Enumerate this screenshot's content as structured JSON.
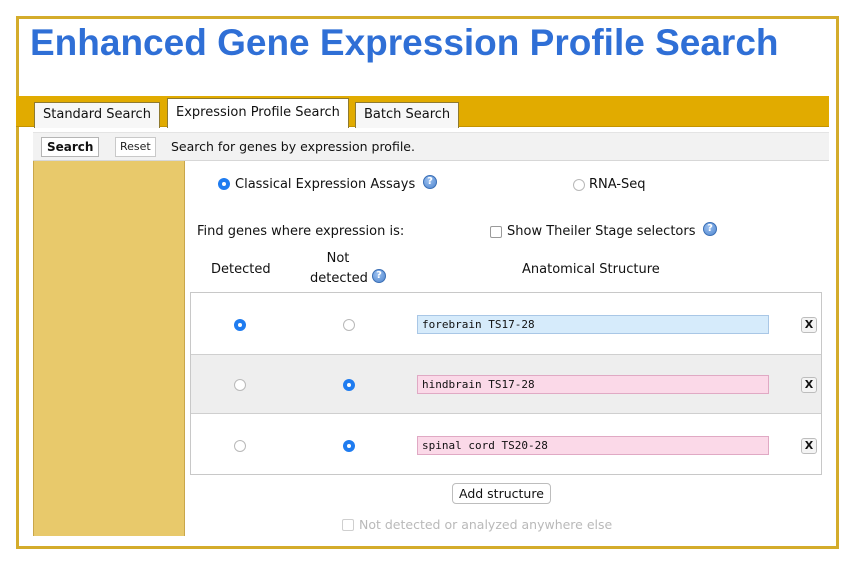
{
  "page": {
    "title": "Enhanced Gene Expression Profile Search"
  },
  "tabs": [
    {
      "label": "Standard Search"
    },
    {
      "label": "Expression Profile Search"
    },
    {
      "label": "Batch Search"
    }
  ],
  "toolbar": {
    "search_label": "Search",
    "reset_label": "Reset",
    "description": "Search for genes by expression profile."
  },
  "assay_type": {
    "classical_label": "Classical Expression Assays",
    "rnaseq_label": "RNA-Seq",
    "selected": "classical"
  },
  "filters": {
    "find_label": "Find genes where expression is:",
    "theiler_label": "Show Theiler Stage selectors"
  },
  "table": {
    "col_detected": "Detected",
    "col_not_detected_line1": "Not",
    "col_not_detected_line2": "detected",
    "col_structure": "Anatomical Structure",
    "remove_label": "X",
    "rows": [
      {
        "structure": "forebrain TS17-28",
        "selection": "detected"
      },
      {
        "structure": "hindbrain TS17-28",
        "selection": "not_detected"
      },
      {
        "structure": "spinal cord TS20-28",
        "selection": "not_detected"
      }
    ]
  },
  "actions": {
    "add_structure_label": "Add structure",
    "not_detected_elsewhere_label": "Not detected or analyzed anywhere else"
  },
  "colors": {
    "title": "#2f6fd6",
    "frame_border": "#d4ac2b",
    "tab_bar": "#e1ab00",
    "left_band": "#e8c96b",
    "radio_selected": "#1f7cf0",
    "input_detected": "#d6ebfb",
    "input_not_detected": "#fbd9e8"
  },
  "icons": {
    "help": "help-icon",
    "remove": "remove-icon"
  }
}
